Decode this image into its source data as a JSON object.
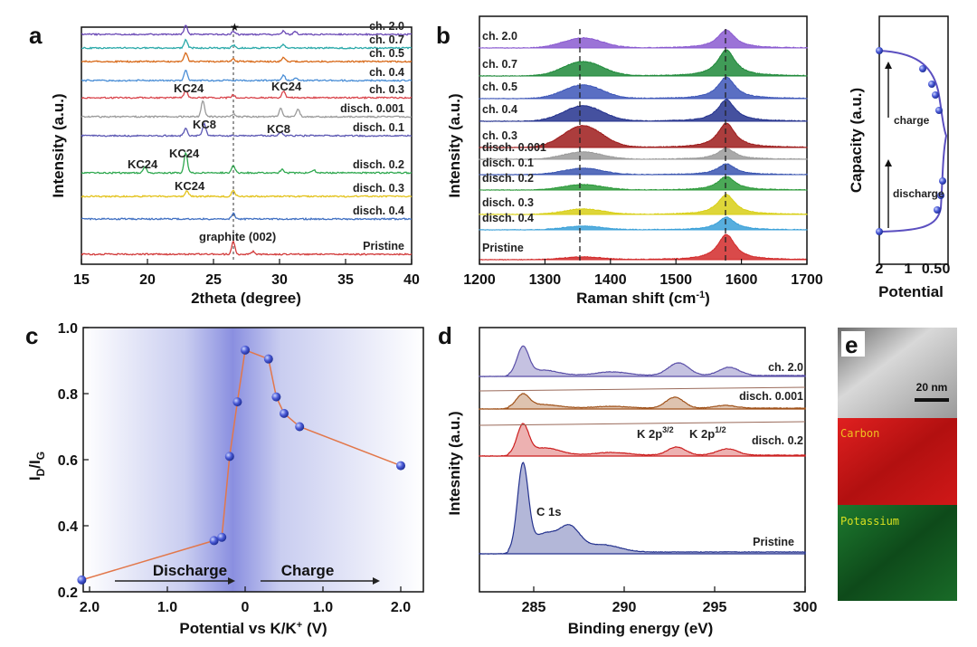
{
  "chart_data": [
    {
      "panel": "a",
      "type": "line",
      "xlabel": "2theta (degree)",
      "ylabel": "Intensity (a.u.)",
      "xlim": [
        15,
        40
      ],
      "xticks": [
        "15",
        "20",
        "25",
        "30",
        "35",
        "40"
      ],
      "star": "★",
      "series": [
        {
          "name": "ch. 2.0",
          "color": "#6a48b5"
        },
        {
          "name": "ch. 0.7",
          "color": "#2aa9a9"
        },
        {
          "name": "ch. 0.5",
          "color": "#d86a1a"
        },
        {
          "name": "ch. 0.4",
          "color": "#4a8ed6"
        },
        {
          "name": "ch. 0.3",
          "color": "#d9444b"
        },
        {
          "name": "disch. 0.001",
          "color": "#9a9a9a"
        },
        {
          "name": "disch. 0.1",
          "color": "#5b57b3"
        },
        {
          "name": "disch. 0.2",
          "color": "#2fa84f"
        },
        {
          "name": "disch. 0.3",
          "color": "#e3c21a"
        },
        {
          "name": "disch. 0.4",
          "color": "#3f6fc2"
        },
        {
          "name": "Pristine",
          "color": "#d23a3a"
        }
      ],
      "annotations": [
        "KC24",
        "KC24",
        "KC8",
        "KC8",
        "KC24",
        "KC24",
        "KC24",
        "graphite (002)"
      ]
    },
    {
      "panel": "b",
      "type": "area",
      "xlabel": "Raman shift (cm",
      "xlabel_sup": "-1",
      "xlabel_end": ")",
      "ylabel": "Intensity (a.u.)",
      "xlim": [
        1200,
        1700
      ],
      "xticks": [
        "1200",
        "1300",
        "1400",
        "1500",
        "1600",
        "1700"
      ],
      "series": [
        {
          "name": "ch. 2.0",
          "color": "#8a5ad0"
        },
        {
          "name": "ch. 0.7",
          "color": "#1f8a3a"
        },
        {
          "name": "ch. 0.5",
          "color": "#3d56b8"
        },
        {
          "name": "ch. 0.4",
          "color": "#24328e"
        },
        {
          "name": "ch. 0.3",
          "color": "#9e1b1b"
        },
        {
          "name": "disch. 0.001",
          "color": "#9a9a9a"
        },
        {
          "name": "disch. 0.1",
          "color": "#3a55b0"
        },
        {
          "name": "disch. 0.2",
          "color": "#2c9a3a"
        },
        {
          "name": "disch. 0.3",
          "color": "#d8cf16"
        },
        {
          "name": "disch. 0.4",
          "color": "#3aa0d8"
        },
        {
          "name": "Pristine",
          "color": "#d22a2a"
        }
      ]
    },
    {
      "panel": "b-inset",
      "type": "line",
      "xlabel": "Potential",
      "ylabel": "Capacity (a.u.)",
      "xticks": [
        "2",
        "1",
        "0.5",
        "0"
      ],
      "arrow_labels": [
        "charge",
        "discharge"
      ]
    },
    {
      "panel": "c",
      "type": "scatter",
      "xlabel": "Potential vs K/K",
      "xlabel_sup": "+",
      "xlabel_end": " (V)",
      "ylabel_main": "I",
      "ylabel_sub1": "D",
      "ylabel_mid": "/I",
      "ylabel_sub2": "G",
      "xticks": [
        "2.0",
        "1.0",
        "0",
        "1.0",
        "2.0"
      ],
      "yticks": [
        "0.2",
        "0.4",
        "0.6",
        "0.8",
        "1.0"
      ],
      "ylim": [
        0.2,
        1.0
      ],
      "arrow_labels": [
        "Discharge",
        "Charge"
      ],
      "points": [
        {
          "v": 2.1,
          "y": 0.236
        },
        {
          "v": 0.4,
          "y": 0.355
        },
        {
          "v": 0.3,
          "y": 0.365
        },
        {
          "v": 0.2,
          "y": 0.61
        },
        {
          "v": 0.1,
          "y": 0.775
        },
        {
          "v": 0.0,
          "y": 0.932
        },
        {
          "v": 0.3,
          "y": 0.905
        },
        {
          "v": 0.4,
          "y": 0.79
        },
        {
          "v": 0.5,
          "y": 0.74
        },
        {
          "v": 0.7,
          "y": 0.7
        },
        {
          "v": 2.0,
          "y": 0.582
        }
      ]
    },
    {
      "panel": "d",
      "type": "area",
      "xlabel": "Binding energy (eV)",
      "ylabel": "Intesnity (a.u.)",
      "xlim": [
        282,
        300
      ],
      "xticks": [
        "285",
        "290",
        "295",
        "300"
      ],
      "series": [
        {
          "name": "ch. 2.0",
          "color": "#5a4fa8"
        },
        {
          "name": "disch. 0.001",
          "color": "#a0521a"
        },
        {
          "name": "disch. 0.2",
          "color": "#cc1f1f"
        },
        {
          "name": "Pristine",
          "color": "#24328e"
        }
      ],
      "annotations": [
        "C 1s",
        "K 2p",
        "3/2",
        "K 2p",
        "1/2"
      ]
    },
    {
      "panel": "e",
      "type": "other",
      "scalebar": "20 nm",
      "maps": [
        "Carbon",
        "Potassium"
      ]
    }
  ],
  "panel_letters": [
    "a",
    "b",
    "c",
    "d",
    "e"
  ]
}
